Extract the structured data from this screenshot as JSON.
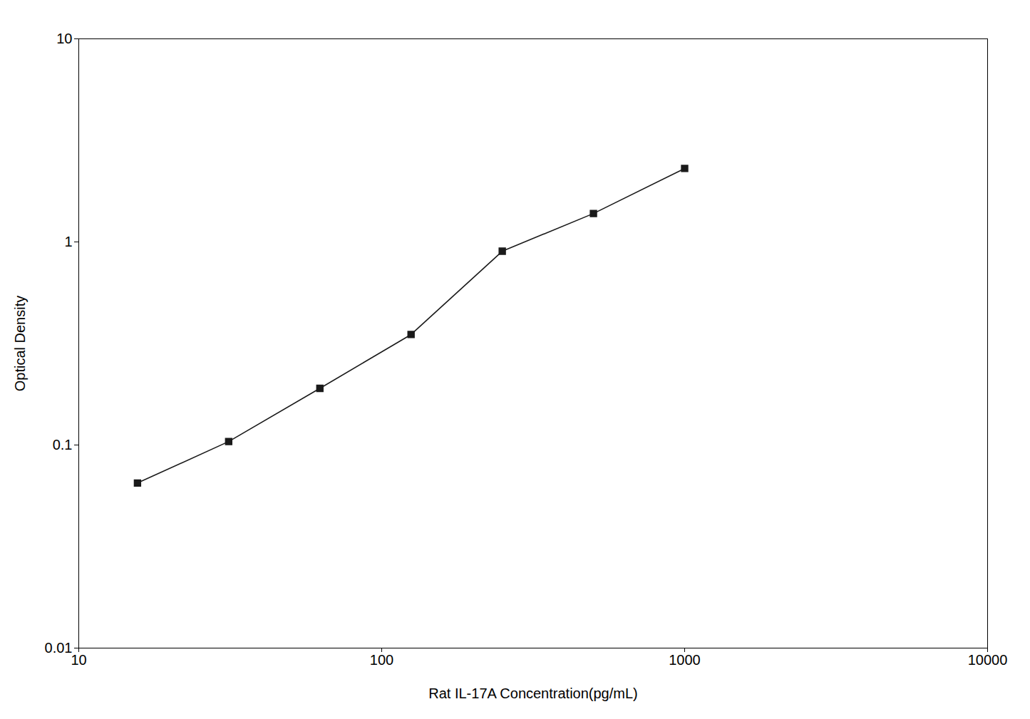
{
  "chart_data": {
    "type": "line",
    "x": [
      15.625,
      31.25,
      62.5,
      125,
      250,
      500,
      1000
    ],
    "values": [
      0.065,
      0.104,
      0.19,
      0.35,
      0.9,
      1.38,
      2.3
    ],
    "xlabel": "Rat IL-17A Concentration(pg/mL)",
    "ylabel": "Optical Density",
    "xlim": [
      10,
      10000
    ],
    "ylim": [
      0.01,
      10
    ],
    "xticks": [
      10,
      100,
      1000,
      10000
    ],
    "yticks": [
      0.01,
      0.1,
      1,
      10
    ],
    "log": true,
    "grid": false,
    "color": "#1a1a1a",
    "marker": "square"
  }
}
